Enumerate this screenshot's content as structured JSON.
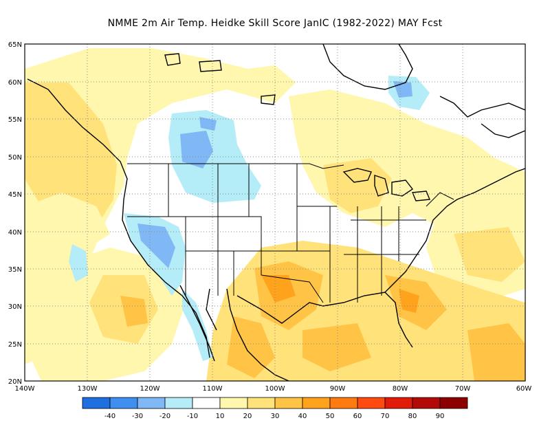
{
  "title": "NMME  2m Air Temp. Heidke Skill Score JanIC (1982-2022) MAY Fcst",
  "map": {
    "lat_labels": [
      "65N",
      "60N",
      "55N",
      "50N",
      "45N",
      "40N",
      "35N",
      "30N",
      "25N",
      "20N"
    ],
    "lon_labels": [
      "140W",
      "130W",
      "120W",
      "110W",
      "100W",
      "90W",
      "80W",
      "70W",
      "60W"
    ]
  },
  "colorbar": {
    "bins": [
      {
        "color": "#1f6fe0"
      },
      {
        "color": "#3f8ef0"
      },
      {
        "color": "#7fb8f5"
      },
      {
        "color": "#b4ecf7"
      },
      {
        "color": "#ffffff"
      },
      {
        "color": "#fff7ad"
      },
      {
        "color": "#ffe27a"
      },
      {
        "color": "#ffc445"
      },
      {
        "color": "#ffa21c"
      },
      {
        "color": "#ff7b10"
      },
      {
        "color": "#ff4a10"
      },
      {
        "color": "#e01b0a"
      },
      {
        "color": "#b30a08"
      },
      {
        "color": "#8c0000"
      }
    ],
    "tick_labels": [
      "-40",
      "-30",
      "-20",
      "-10",
      "10",
      "20",
      "30",
      "40",
      "50",
      "60",
      "70",
      "80",
      "90"
    ]
  },
  "colors": {
    "pos_light": "#fff7ad",
    "pos_mid": "#ffe27a",
    "pos_strong": "#ffc445",
    "pos_stronger": "#ffa21c",
    "neg_light": "#b4ecf7",
    "neg_mid": "#7fb8f5"
  }
}
